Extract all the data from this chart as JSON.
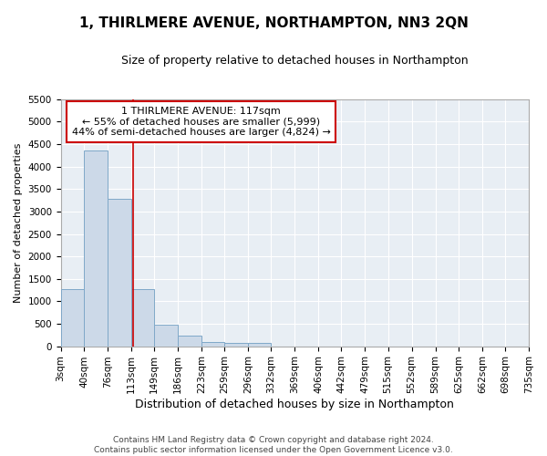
{
  "title": "1, THIRLMERE AVENUE, NORTHAMPTON, NN3 2QN",
  "subtitle": "Size of property relative to detached houses in Northampton",
  "xlabel": "Distribution of detached houses by size in Northampton",
  "ylabel": "Number of detached properties",
  "footer_line1": "Contains HM Land Registry data © Crown copyright and database right 2024.",
  "footer_line2": "Contains public sector information licensed under the Open Government Licence v3.0.",
  "annotation_line1": "1 THIRLMERE AVENUE: 117sqm",
  "annotation_line2": "← 55% of detached houses are smaller (5,999)",
  "annotation_line3": "44% of semi-detached houses are larger (4,824) →",
  "property_size": 117,
  "bar_color": "#ccd9e8",
  "bar_edge_color": "#7fa8c8",
  "vline_color": "#cc0000",
  "annotation_box_edgecolor": "#cc0000",
  "background_color": "#ffffff",
  "plot_bg_color": "#e8eef4",
  "grid_color": "#ffffff",
  "ylim": [
    0,
    5500
  ],
  "yticks": [
    0,
    500,
    1000,
    1500,
    2000,
    2500,
    3000,
    3500,
    4000,
    4500,
    5000,
    5500
  ],
  "bins": [
    3,
    40,
    76,
    113,
    149,
    186,
    223,
    259,
    296,
    332,
    369,
    406,
    442,
    479,
    515,
    552,
    589,
    625,
    662,
    698,
    735
  ],
  "bar_heights": [
    1270,
    4350,
    3280,
    1270,
    480,
    230,
    100,
    65,
    65,
    0,
    0,
    0,
    0,
    0,
    0,
    0,
    0,
    0,
    0,
    0
  ],
  "title_fontsize": 11,
  "subtitle_fontsize": 9,
  "xlabel_fontsize": 9,
  "ylabel_fontsize": 8,
  "tick_fontsize": 7.5,
  "annotation_fontsize": 8,
  "footer_fontsize": 6.5
}
